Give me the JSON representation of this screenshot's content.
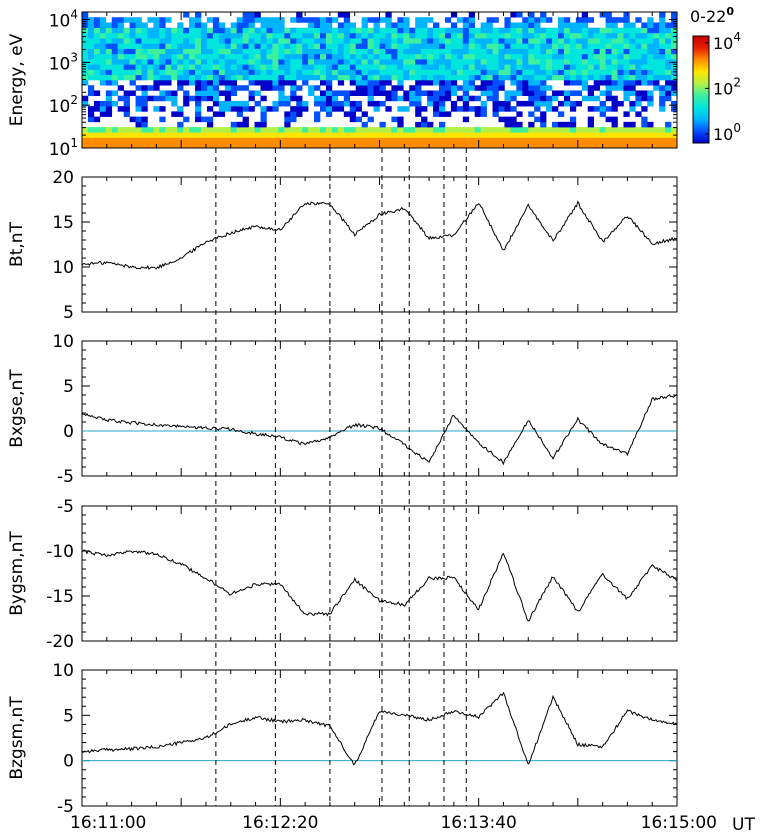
{
  "chart_data": [
    {
      "type": "heatmap",
      "panel": "spectrogram",
      "ylabel": "Energy, eV",
      "yscale": "log",
      "ylim": [
        10,
        15000
      ],
      "yticks": [
        {
          "value": 10,
          "base": "10",
          "exp": "1"
        },
        {
          "value": 100,
          "base": "10",
          "exp": "2"
        },
        {
          "value": 1000,
          "base": "10",
          "exp": "3"
        },
        {
          "value": 10000,
          "base": "10",
          "exp": "4"
        }
      ],
      "colorbar": {
        "title_main": "0-22",
        "title_sup": "0",
        "scale": "log",
        "range": [
          0.4,
          20000
        ],
        "ticks": [
          {
            "value": 1,
            "base": "10",
            "exp": "0"
          },
          {
            "value": 100,
            "base": "10",
            "exp": "2"
          },
          {
            "value": 10000,
            "base": "10",
            "exp": "4"
          }
        ],
        "colors": [
          "#0000c8",
          "#0050ff",
          "#00b4ff",
          "#00e6dc",
          "#3cf0a0",
          "#b4f046",
          "#ffe600",
          "#ff8c00",
          "#e61e00",
          "#c80000"
        ]
      }
    },
    {
      "type": "line",
      "panel": "Bt",
      "ylabel": "Bt,nT",
      "ylim": [
        5,
        20
      ],
      "yticks": [
        5,
        10,
        15,
        20
      ],
      "zero_line": false,
      "series": [
        {
          "x": [
            0,
            10,
            20,
            30,
            40,
            50,
            60,
            70,
            80,
            90,
            100,
            110,
            120,
            130,
            140,
            150,
            160,
            170,
            180,
            190,
            200,
            210,
            220,
            230,
            240
          ],
          "y": [
            10.3,
            10.5,
            10.0,
            9.9,
            11.0,
            12.8,
            13.8,
            14.5,
            14.1,
            17.1,
            17.0,
            13.6,
            15.8,
            16.5,
            13.2,
            13.5,
            17.2,
            11.8,
            16.8,
            12.9,
            17.1,
            12.8,
            15.7,
            12.6,
            13.2
          ]
        }
      ]
    },
    {
      "type": "line",
      "panel": "Bx",
      "ylabel": "Bxgse,nT",
      "ylim": [
        -5,
        10
      ],
      "yticks": [
        -5,
        0,
        5,
        10
      ],
      "zero_line": true,
      "series": [
        {
          "x": [
            0,
            10,
            20,
            30,
            40,
            50,
            60,
            70,
            80,
            90,
            100,
            110,
            120,
            130,
            140,
            150,
            160,
            170,
            180,
            190,
            200,
            210,
            220,
            230,
            240
          ],
          "y": [
            2.0,
            1.2,
            0.9,
            0.7,
            0.5,
            0.3,
            0.2,
            -0.3,
            -0.7,
            -1.5,
            -0.7,
            0.7,
            0.3,
            -1.5,
            -3.5,
            1.8,
            -1.3,
            -3.5,
            1.2,
            -3.0,
            1.3,
            -1.5,
            -2.5,
            3.5,
            4.0
          ]
        }
      ]
    },
    {
      "type": "line",
      "panel": "By",
      "ylabel": "Bygsm,nT",
      "ylim": [
        -20,
        -5
      ],
      "yticks": [
        -20,
        -15,
        -10,
        -5
      ],
      "zero_line": false,
      "series": [
        {
          "x": [
            0,
            10,
            20,
            30,
            40,
            50,
            60,
            70,
            80,
            90,
            100,
            110,
            120,
            130,
            140,
            150,
            160,
            170,
            180,
            190,
            200,
            210,
            220,
            230,
            240
          ],
          "y": [
            -10.0,
            -10.5,
            -10.0,
            -10.3,
            -11.5,
            -13.0,
            -14.8,
            -13.7,
            -13.7,
            -17.0,
            -17.0,
            -13.2,
            -15.5,
            -16.0,
            -13.0,
            -13.0,
            -16.5,
            -10.2,
            -17.8,
            -12.8,
            -16.8,
            -12.6,
            -15.3,
            -11.6,
            -13.3
          ]
        }
      ]
    },
    {
      "type": "line",
      "panel": "Bz",
      "ylabel": "Bzgsm,nT",
      "ylim": [
        -5,
        10
      ],
      "yticks": [
        -5,
        0,
        5,
        10
      ],
      "zero_line": true,
      "series": [
        {
          "x": [
            0,
            10,
            20,
            30,
            40,
            50,
            60,
            70,
            80,
            90,
            100,
            110,
            120,
            130,
            140,
            150,
            160,
            170,
            180,
            190,
            200,
            210,
            220,
            230,
            240
          ],
          "y": [
            1.0,
            1.2,
            1.3,
            1.5,
            2.0,
            2.5,
            4.0,
            4.8,
            4.3,
            4.5,
            3.8,
            -0.5,
            5.5,
            5.0,
            4.5,
            5.5,
            4.8,
            7.5,
            -0.5,
            7.0,
            1.8,
            1.5,
            5.5,
            4.5,
            4.0
          ]
        }
      ]
    }
  ],
  "xaxis": {
    "range_seconds": [
      0,
      240
    ],
    "tick_labels": [
      {
        "sec": 0,
        "label": "16:11:00"
      },
      {
        "sec": 80,
        "label": "16:12:20"
      },
      {
        "sec": 160,
        "label": "16:13:40"
      },
      {
        "sec": 240,
        "label": "16:15:00"
      }
    ],
    "unit_label": "UT"
  },
  "event_lines_seconds": [
    54,
    78,
    100,
    121,
    132,
    146,
    155
  ],
  "colors": {
    "trace": "#000000",
    "zero_line": "#2aa8c6",
    "frame": "#000000"
  }
}
